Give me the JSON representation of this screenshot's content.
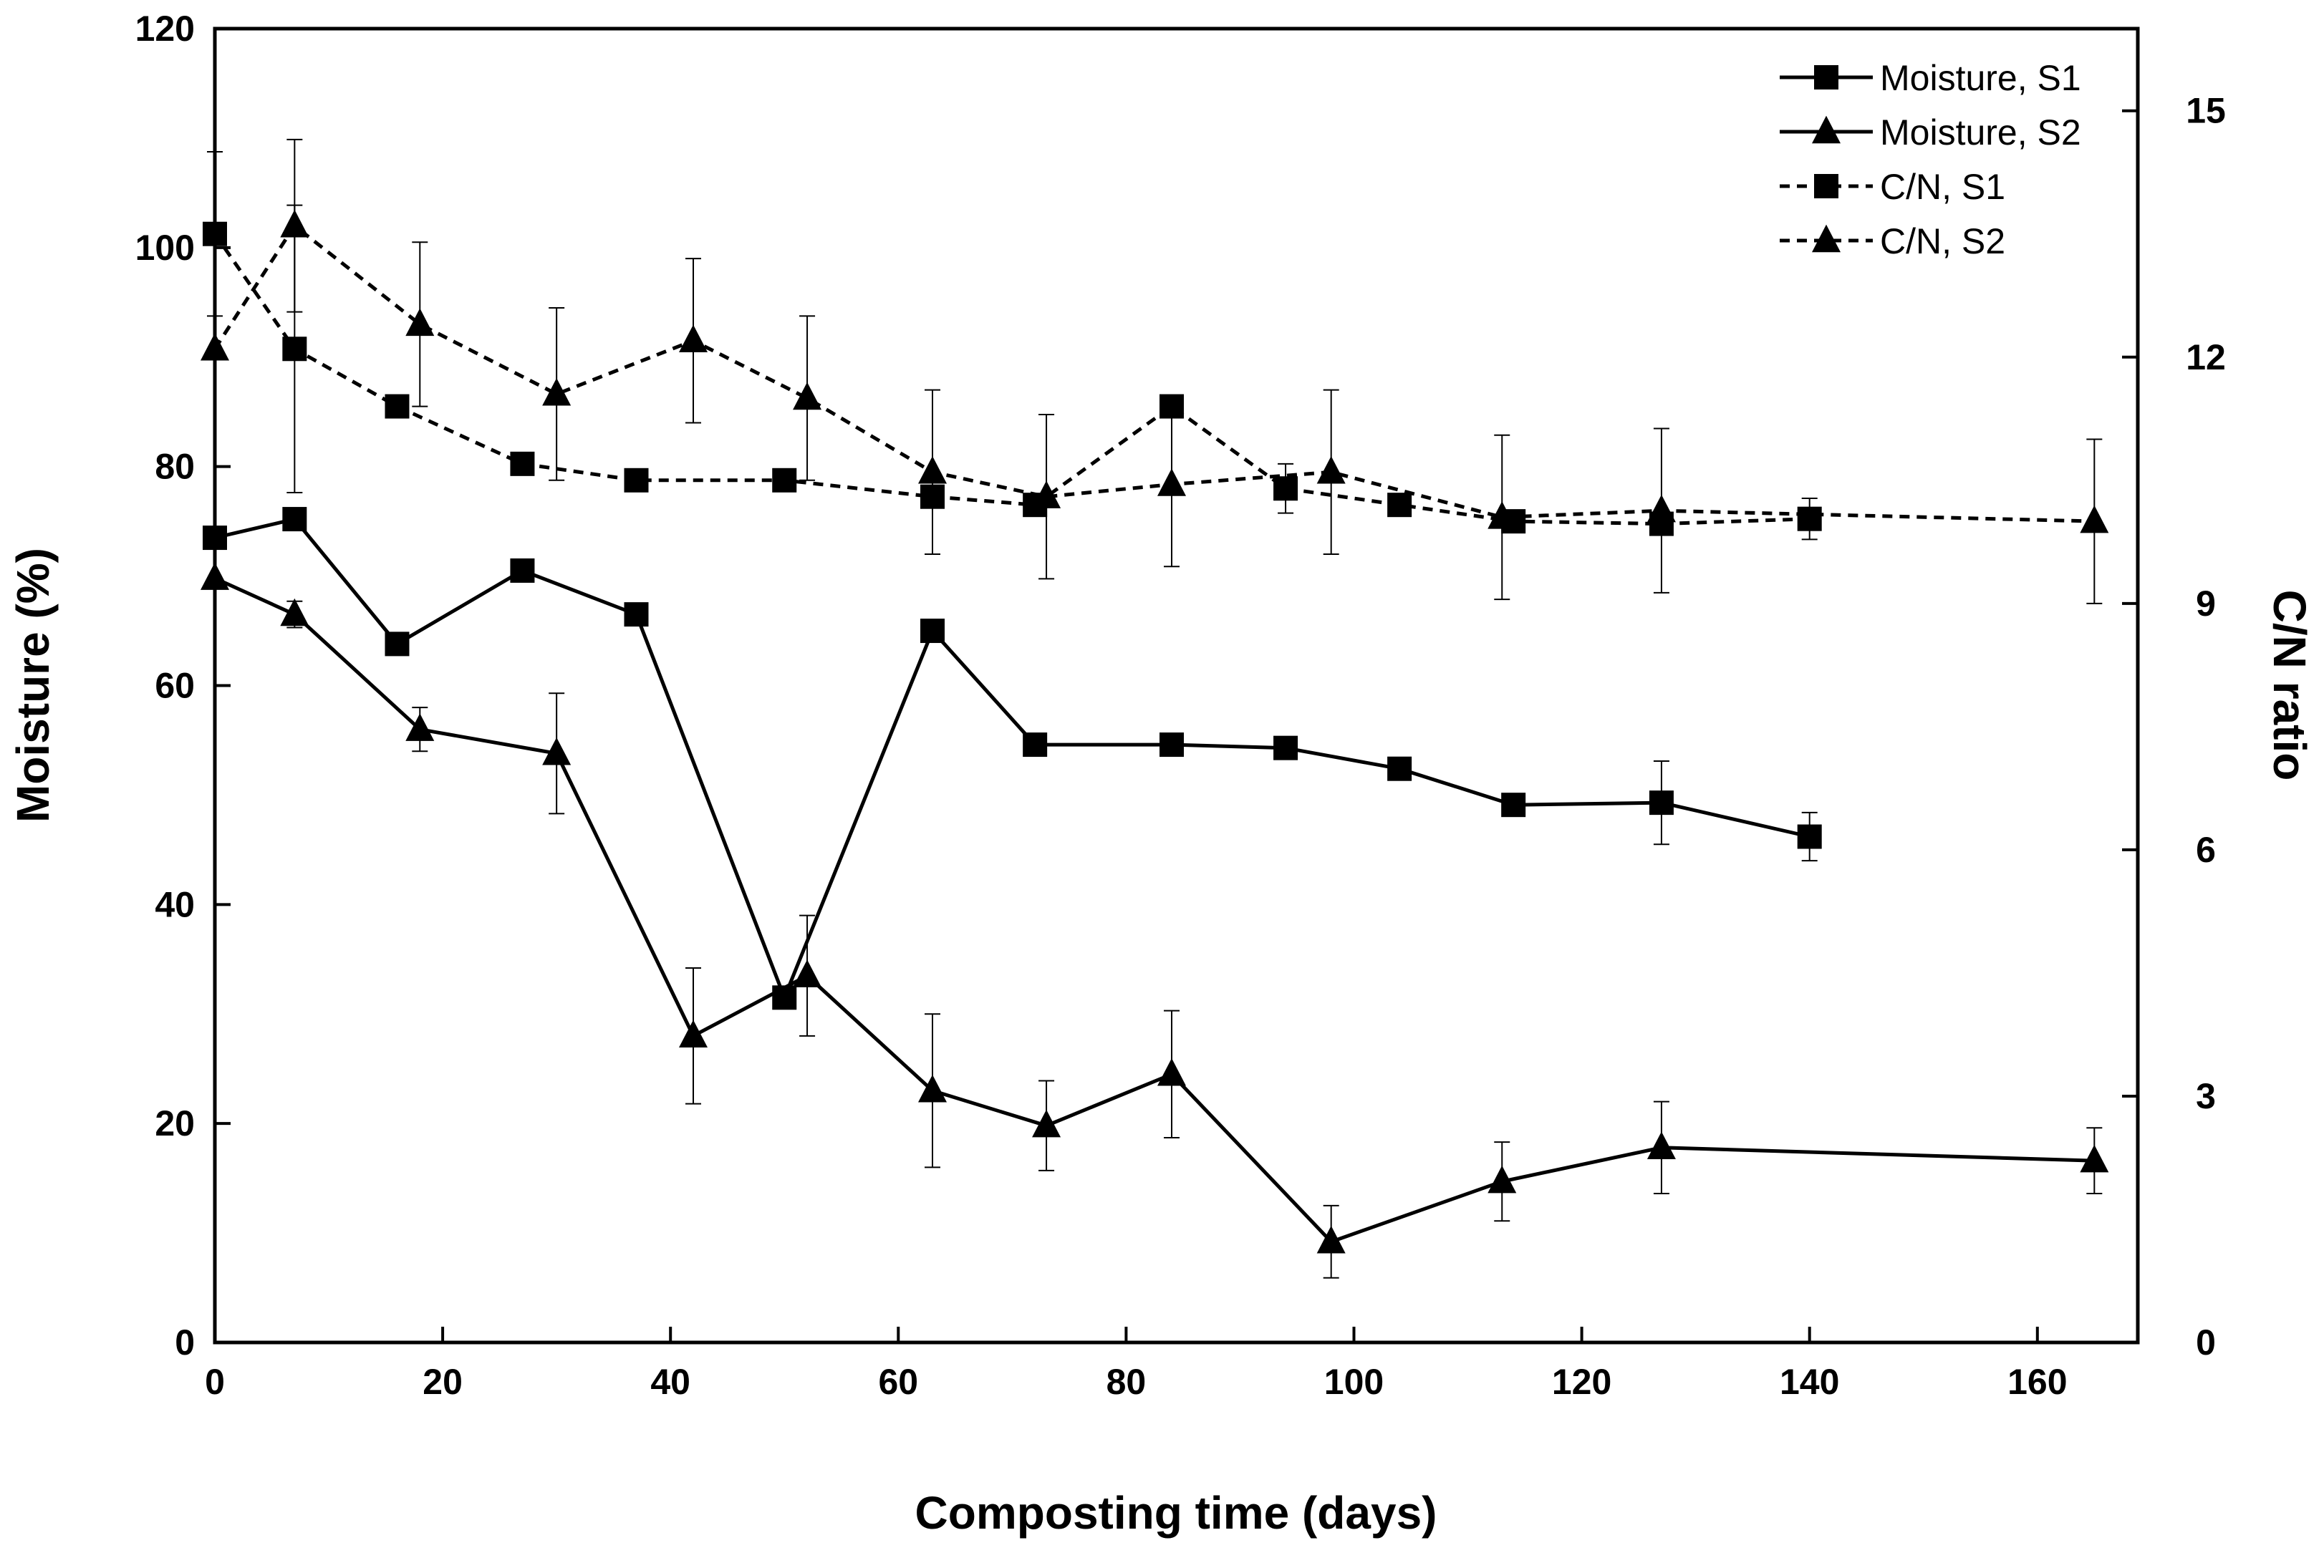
{
  "chart_data": {
    "type": "line",
    "title": "",
    "xlabel": "Composting time (days)",
    "ylabel_left": "Moisture (%)",
    "ylabel_right": "C/N ratio",
    "xlim": [
      0,
      170
    ],
    "ylim_left": [
      0,
      120
    ],
    "ylim_right": [
      0,
      16
    ],
    "x_ticks": [
      "0",
      "20",
      "40",
      "60",
      "80",
      "100",
      "120",
      "140",
      "160"
    ],
    "y_left_ticks": [
      "0",
      "20",
      "40",
      "60",
      "80",
      "100",
      "120"
    ],
    "y_right_ticks": [
      "0",
      "3",
      "6",
      "9",
      "12",
      "15"
    ],
    "grid": false,
    "legend_position": "top-right",
    "series": [
      {
        "name": "Moisture, S1",
        "axis": "left",
        "marker": "square",
        "line": "solid",
        "x": [
          0,
          7,
          16,
          27,
          37,
          50,
          63,
          72,
          84,
          94,
          104,
          114,
          127,
          140
        ],
        "y": [
          73.5,
          75.2,
          63.8,
          70.5,
          66.5,
          31.5,
          65,
          54.6,
          54.6,
          54.3,
          52.4,
          49.1,
          49.3,
          46.2
        ],
        "err": [
          0,
          0,
          0,
          0,
          0,
          0,
          0,
          0,
          0,
          0,
          0,
          0,
          3.8,
          2.2
        ]
      },
      {
        "name": "Moisture, S2",
        "axis": "left",
        "marker": "triangle",
        "line": "solid",
        "x": [
          0,
          7,
          18,
          30,
          42,
          52,
          63,
          73,
          84,
          98,
          113,
          127,
          165
        ],
        "y": [
          69.8,
          66.5,
          56,
          53.8,
          28,
          33.5,
          23,
          19.8,
          24.5,
          9.2,
          14.7,
          17.8,
          16.6
        ],
        "err": [
          0,
          1.2,
          2,
          5.5,
          6.2,
          5.5,
          7,
          4.1,
          5.8,
          3.3,
          3.6,
          4.2,
          3
        ]
      },
      {
        "name": "C/N, S1",
        "axis": "right",
        "marker": "square",
        "line": "dashed",
        "x": [
          0,
          7,
          16,
          27,
          37,
          50,
          63,
          72,
          84,
          94,
          104,
          114,
          127,
          140
        ],
        "y": [
          13.5,
          12.1,
          11.4,
          10.7,
          10.5,
          10.5,
          10.3,
          10.2,
          11.4,
          10.4,
          10.2,
          10,
          9.97,
          10.03
        ],
        "err": [
          1,
          1.75,
          0,
          0,
          0.12,
          0,
          0,
          0,
          0,
          0.3,
          0,
          0,
          0,
          0.25
        ]
      },
      {
        "name": "C/N, S2",
        "axis": "right",
        "marker": "triangle",
        "line": "dashed",
        "x": [
          0,
          7,
          18,
          30,
          42,
          52,
          63,
          73,
          84,
          98,
          113,
          127,
          165
        ],
        "y": [
          12.1,
          13.6,
          12.4,
          11.55,
          12.2,
          11.5,
          10.6,
          10.3,
          10.45,
          10.6,
          10.05,
          10.13,
          10
        ],
        "err": [
          0,
          1.05,
          1.0,
          1.05,
          1.0,
          1.0,
          1.0,
          1.0,
          1.0,
          1.0,
          1.0,
          1.0,
          1.0
        ]
      }
    ]
  }
}
